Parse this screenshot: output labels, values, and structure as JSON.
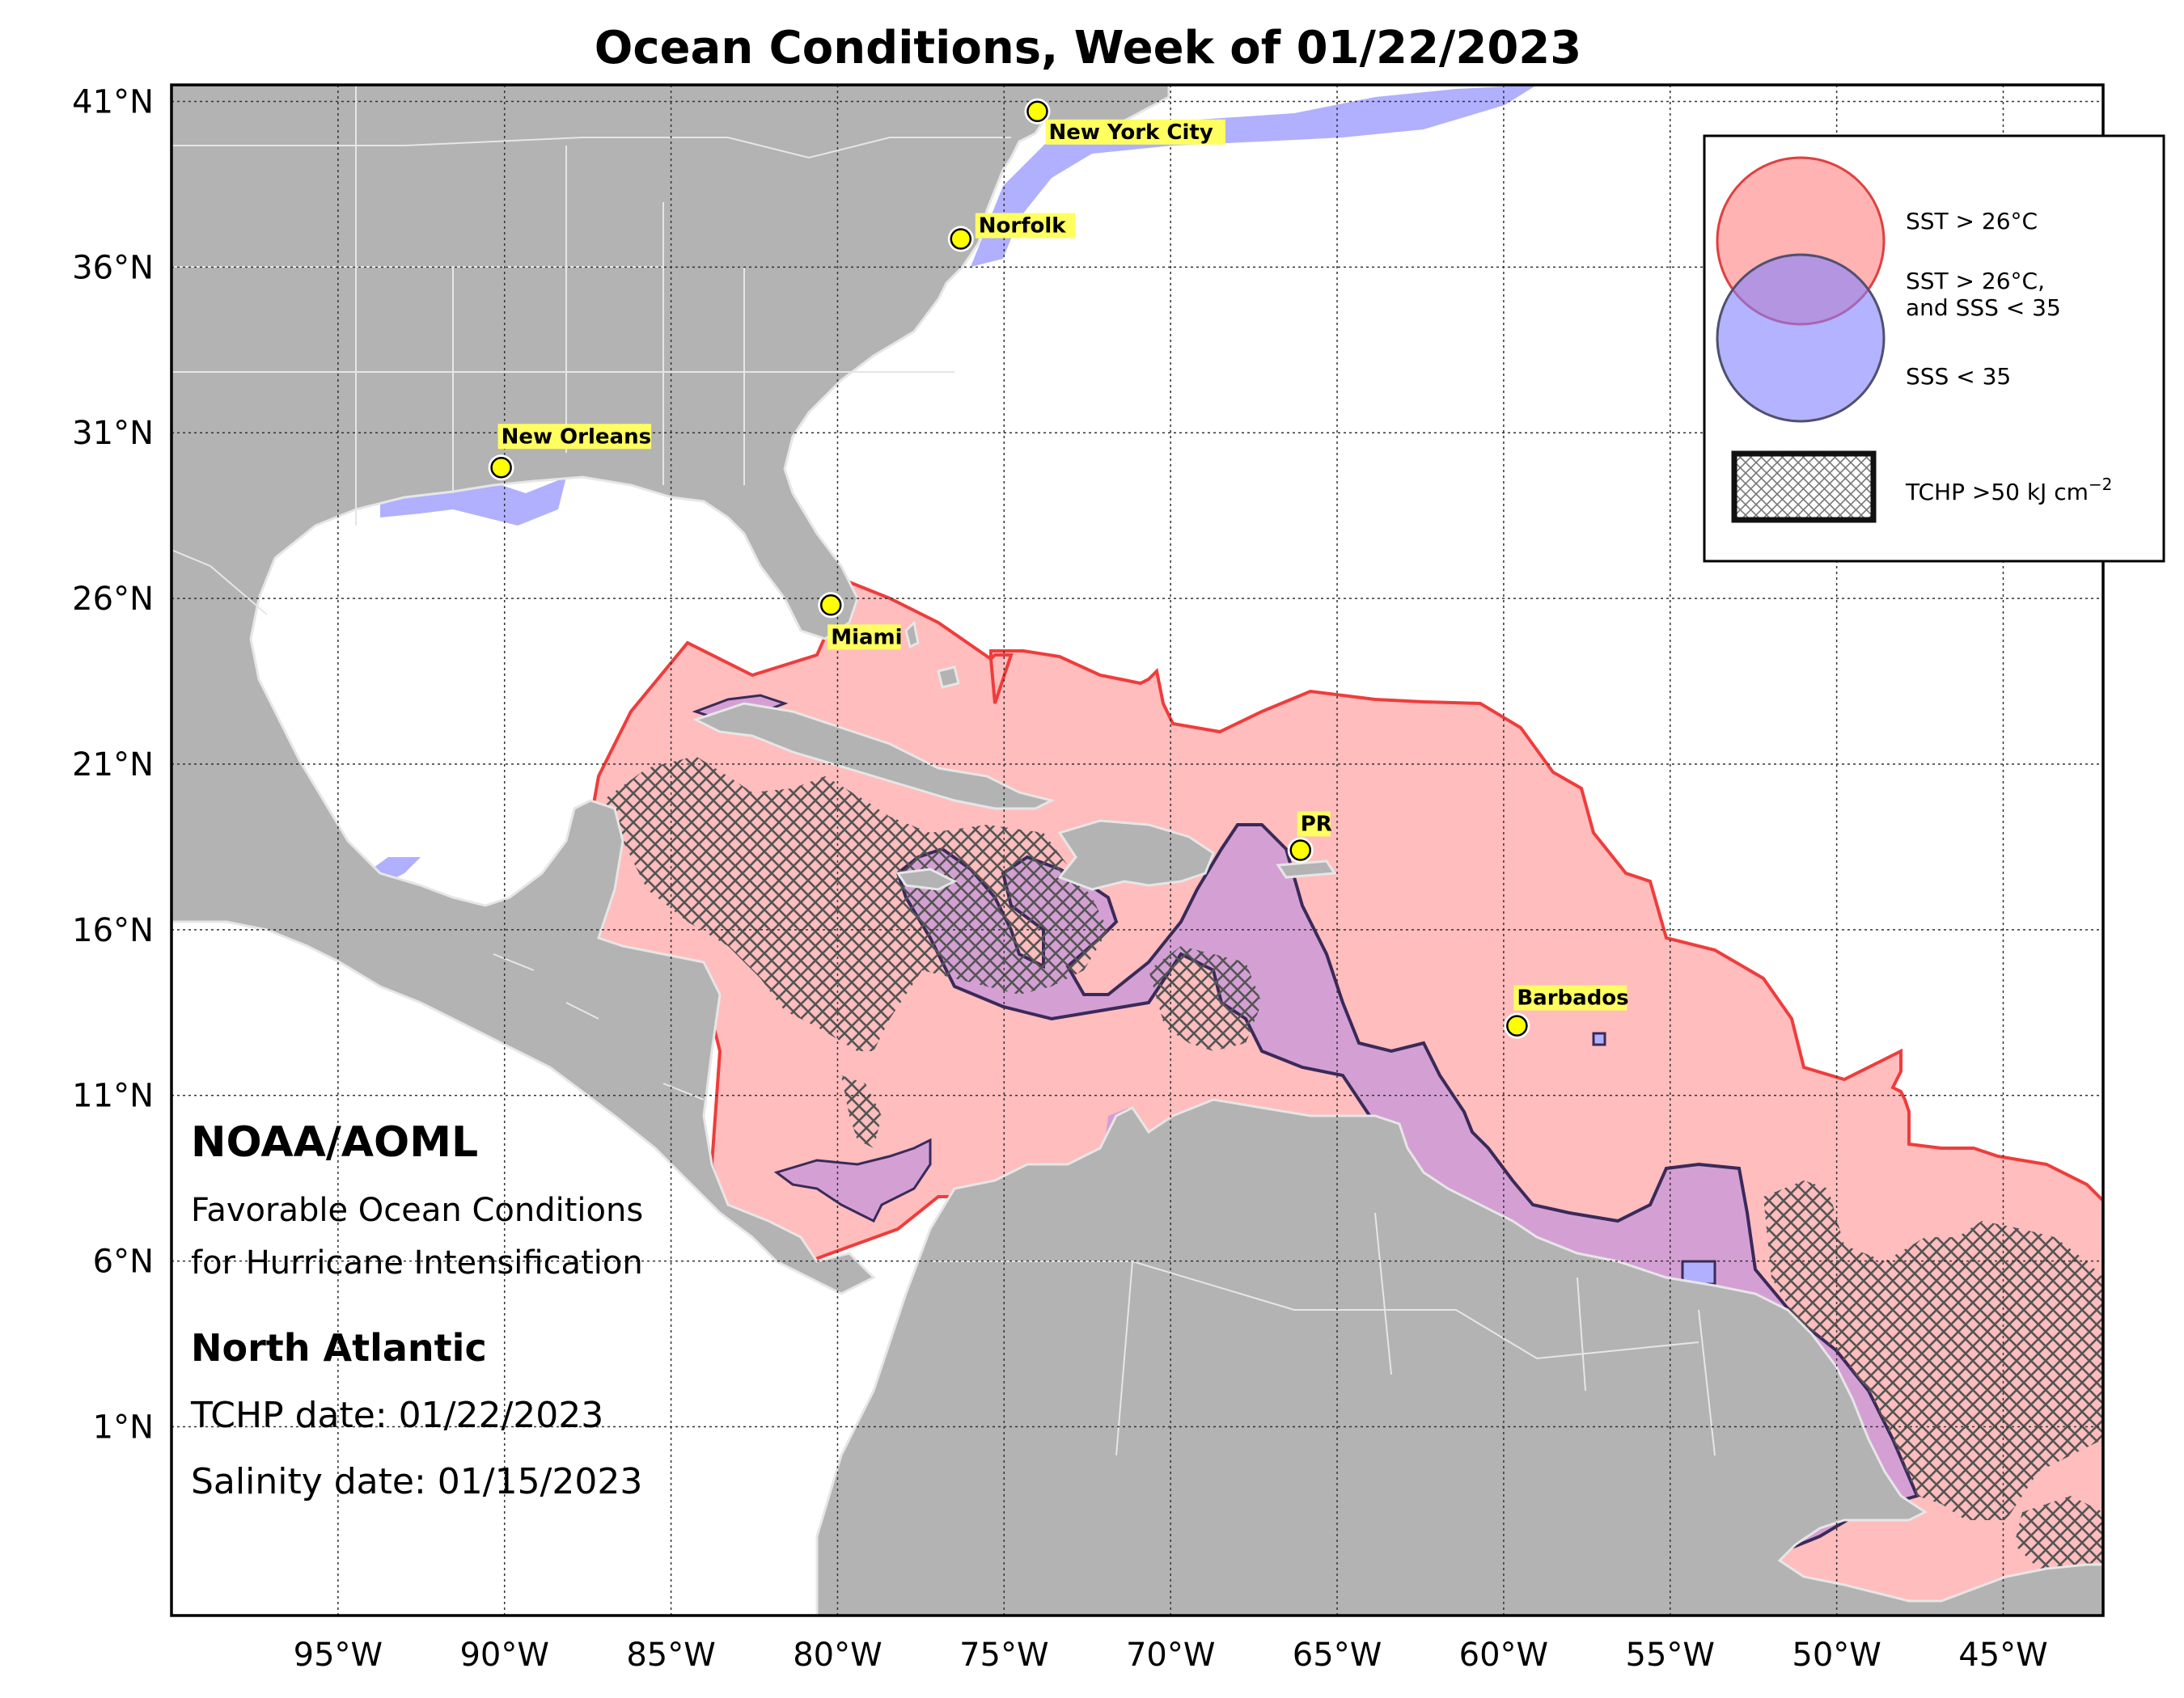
{
  "title": "Ocean Conditions, Week of 01/22/2023",
  "map": {
    "lon_range": [
      -100,
      -42
    ],
    "lat_range": [
      -4.7,
      41.5
    ],
    "lat_ticks": [
      {
        "lat": 41,
        "label": "41°N"
      },
      {
        "lat": 36,
        "label": "36°N"
      },
      {
        "lat": 31,
        "label": "31°N"
      },
      {
        "lat": 26,
        "label": "26°N"
      },
      {
        "lat": 21,
        "label": "21°N"
      },
      {
        "lat": 16,
        "label": "16°N"
      },
      {
        "lat": 11,
        "label": "11°N"
      },
      {
        "lat": 6,
        "label": "6°N"
      },
      {
        "lat": 1,
        "label": "1°N"
      }
    ],
    "lon_ticks": [
      {
        "lon": -95,
        "label": "95°W"
      },
      {
        "lon": -90,
        "label": "90°W"
      },
      {
        "lon": -85,
        "label": "85°W"
      },
      {
        "lon": -80,
        "label": "80°W"
      },
      {
        "lon": -75,
        "label": "75°W"
      },
      {
        "lon": -70,
        "label": "70°W"
      },
      {
        "lon": -65,
        "label": "65°W"
      },
      {
        "lon": -60,
        "label": "60°W"
      },
      {
        "lon": -55,
        "label": "55°W"
      },
      {
        "lon": -50,
        "label": "50°W"
      },
      {
        "lon": -45,
        "label": "45°W"
      }
    ],
    "colors": {
      "land": "#b3b3b3",
      "ocean": "#ffffff",
      "sst": "#ffbdbd",
      "sst_edge": "#f03c3c",
      "sss": "#b0b0ff",
      "overlap": "#d4a0d4",
      "overlap_edge": "#3a2a5a",
      "hatch": "#555555",
      "city_marker": "#ffff00",
      "city_label_bg": "#ffff60"
    }
  },
  "cities": [
    {
      "name": "New York City",
      "lon": -74.0,
      "lat": 40.7
    },
    {
      "name": "Norfolk",
      "lon": -76.3,
      "lat": 36.85
    },
    {
      "name": "New Orleans",
      "lon": -90.1,
      "lat": 29.95
    },
    {
      "name": "Miami",
      "lon": -80.2,
      "lat": 25.8
    },
    {
      "name": "PR",
      "lon": -66.1,
      "lat": 18.4
    },
    {
      "name": "Barbados",
      "lon": -59.6,
      "lat": 13.1
    }
  ],
  "legend": {
    "sst": "SST > 26°C",
    "overlap_line1": "SST > 26°C,",
    "overlap_line2": "and SSS < 35",
    "sss": "SSS < 35",
    "tchp": "TCHP >50 kJ cm",
    "tchp_exp": "−2"
  },
  "info": {
    "org": "NOAA/AOML",
    "desc_line1": "Favorable Ocean Conditions",
    "desc_line2": "for Hurricane Intensification",
    "region": "North Atlantic",
    "tchp_date": "TCHP date: 01/22/2023",
    "salinity_date": "Salinity date: 01/15/2023"
  }
}
